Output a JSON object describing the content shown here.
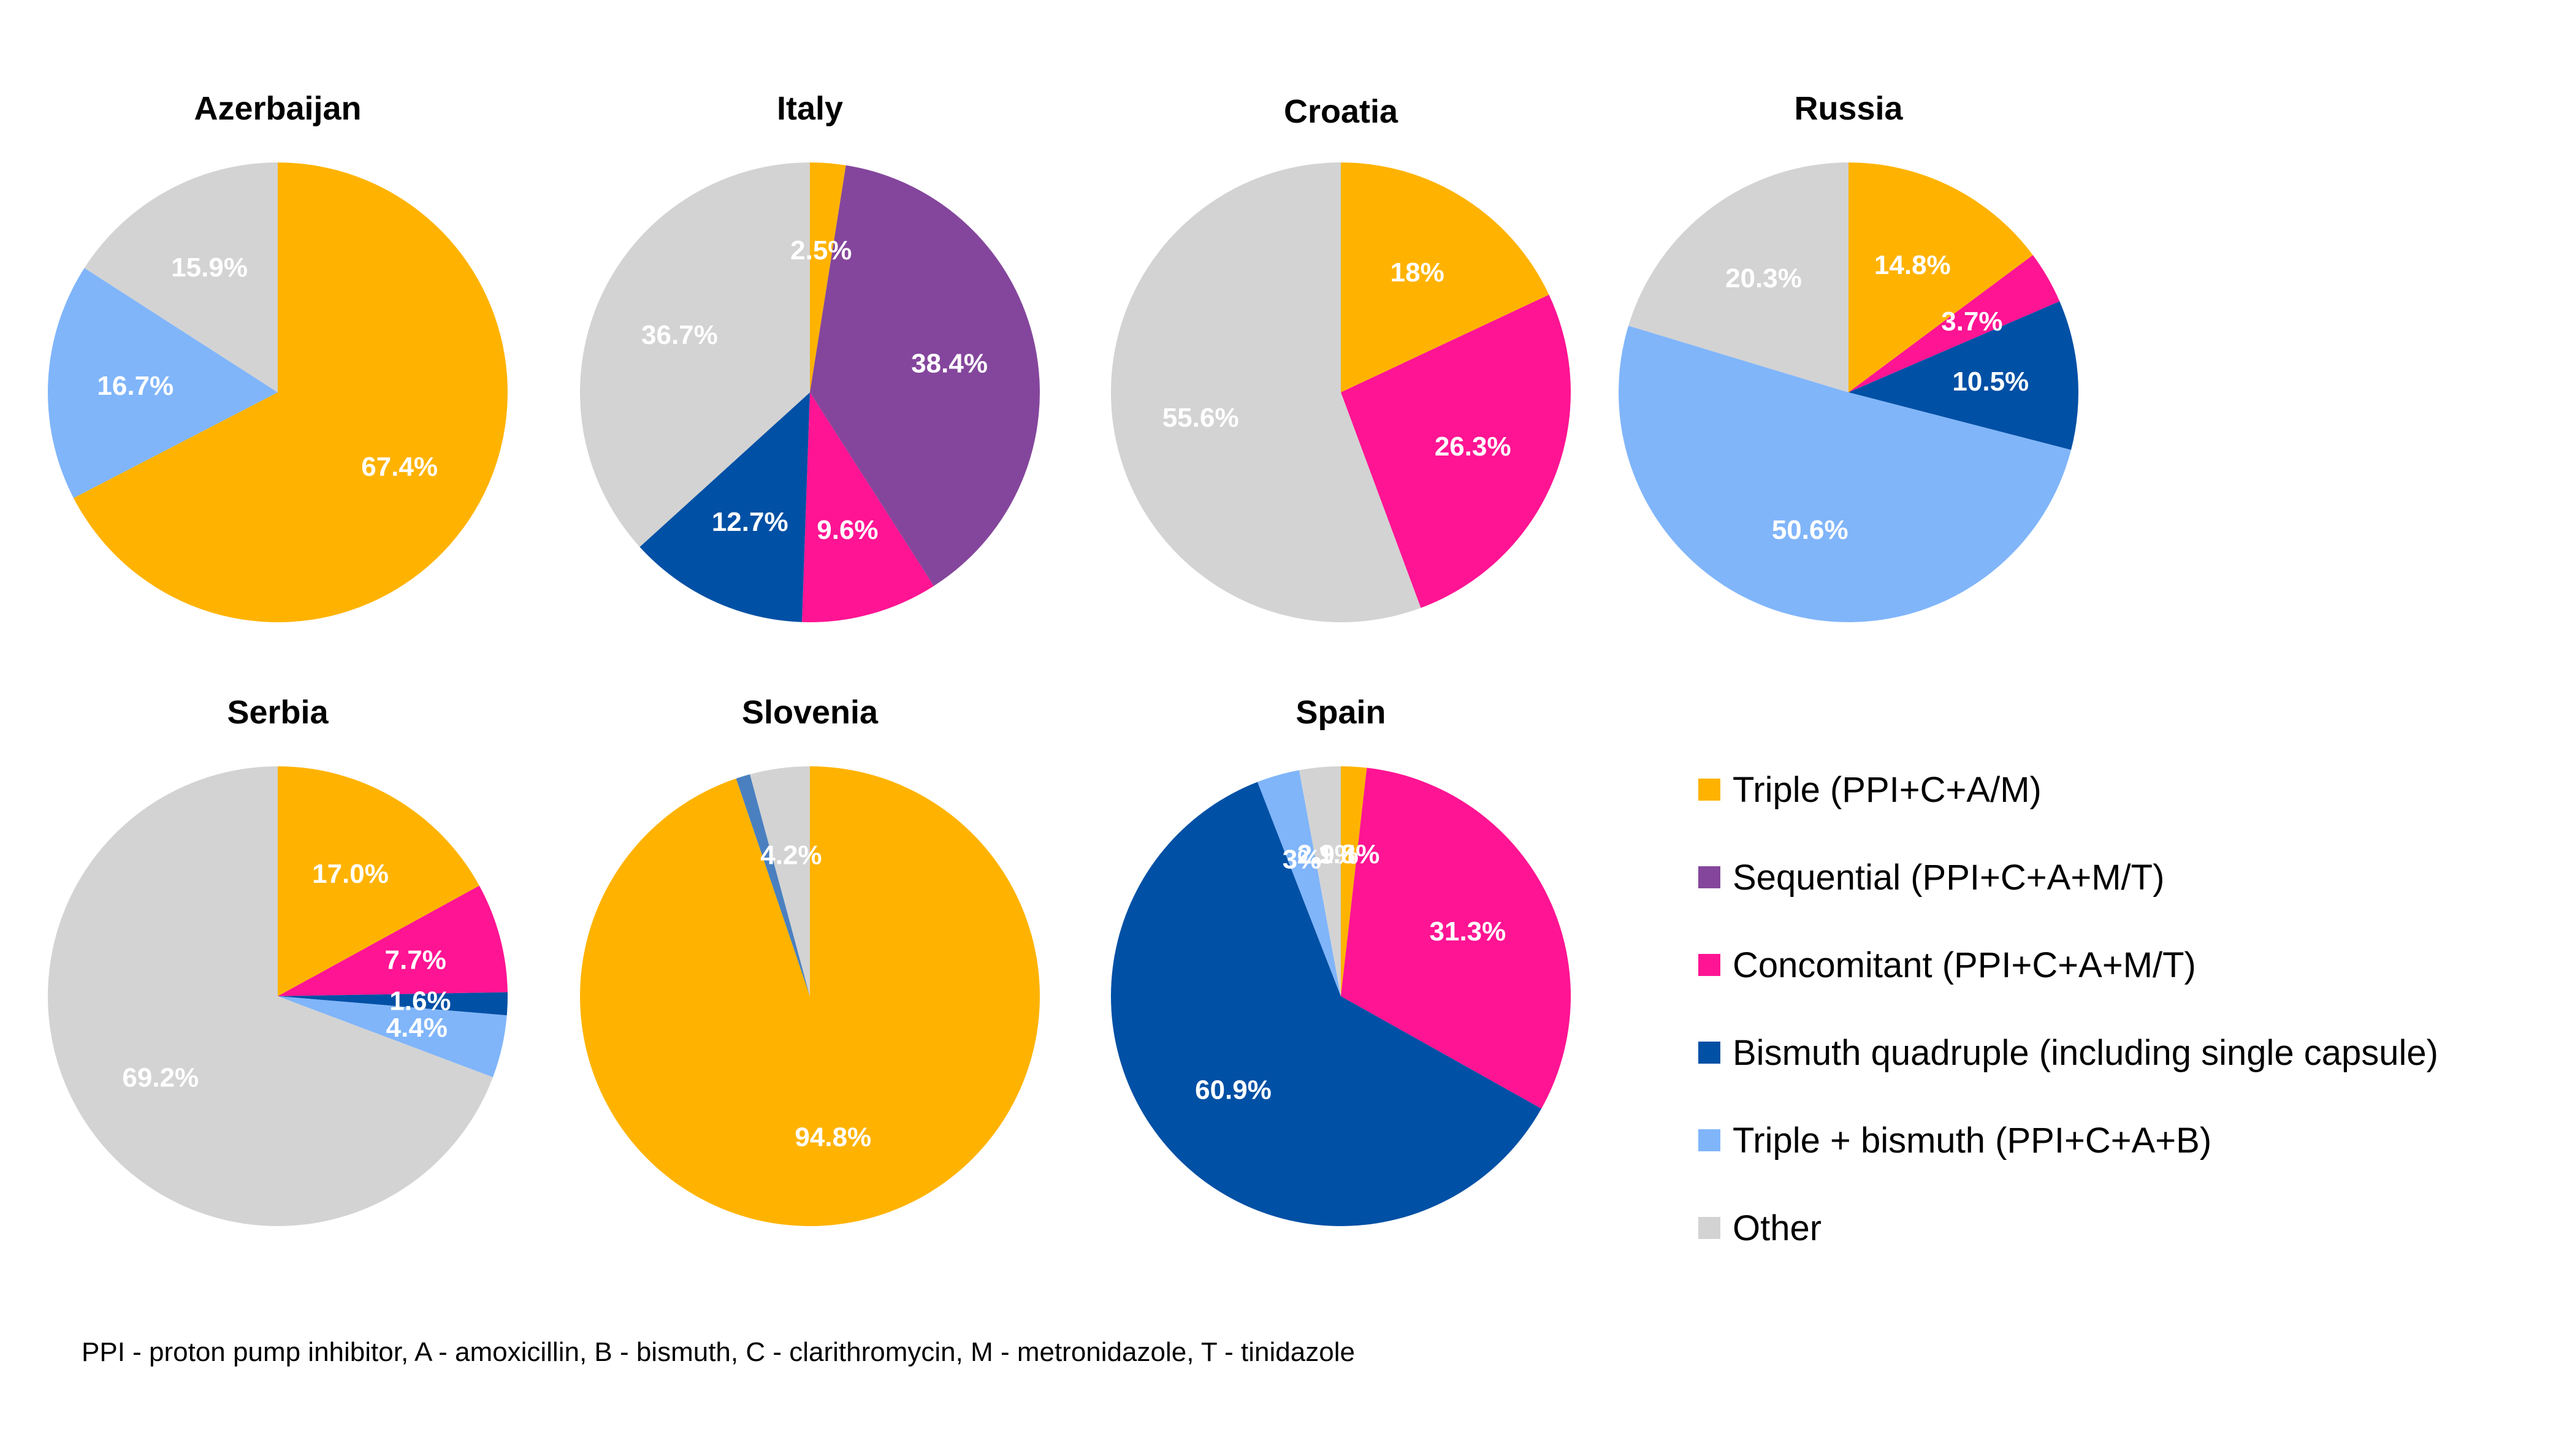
{
  "colors": {
    "triple": "#FFB300",
    "sequential": "#84469C",
    "concomitant": "#FF1493",
    "bismuth_quadruple": "#0050A5",
    "triple_bismuth": "#80B5FA",
    "other": "#D3D3D3",
    "slovenia_sliver": "#4A80C0"
  },
  "legend": {
    "items": [
      {
        "key": "triple",
        "label": "Triple (PPI+C+A/M)"
      },
      {
        "key": "sequential",
        "label": "Sequential (PPI+C+A+M/T)"
      },
      {
        "key": "concomitant",
        "label": "Concomitant (PPI+C+A+M/T)"
      },
      {
        "key": "bismuth_quadruple",
        "label": "Bismuth quadruple (including single capsule)"
      },
      {
        "key": "triple_bismuth",
        "label": "Triple + bismuth (PPI+C+A+B)"
      },
      {
        "key": "other",
        "label": "Other"
      }
    ]
  },
  "footnote": "PPI - proton pump inhibitor, A - amoxicillin, B - bismuth, C - clarithromycin, M - metronidazole, T - tinidazole",
  "chart_data": [
    {
      "type": "pie",
      "title": "Azerbaijan",
      "slices": [
        {
          "key": "triple",
          "value": 67.4,
          "label": "67.4%"
        },
        {
          "key": "triple_bismuth",
          "value": 16.7,
          "label": "16.7%"
        },
        {
          "key": "other",
          "value": 15.9,
          "label": "15.9%"
        }
      ]
    },
    {
      "type": "pie",
      "title": "Italy",
      "slices": [
        {
          "key": "triple",
          "value": 2.5,
          "label": "2.5%"
        },
        {
          "key": "sequential",
          "value": 38.4,
          "label": "38.4%"
        },
        {
          "key": "concomitant",
          "value": 9.6,
          "label": "9.6%"
        },
        {
          "key": "bismuth_quadruple",
          "value": 12.7,
          "label": "12.7%"
        },
        {
          "key": "other",
          "value": 36.7,
          "label": "36.7%"
        }
      ]
    },
    {
      "type": "pie",
      "title": "Croatia",
      "slices": [
        {
          "key": "triple",
          "value": 18,
          "label": "18%"
        },
        {
          "key": "concomitant",
          "value": 26.3,
          "label": "26.3%"
        },
        {
          "key": "other",
          "value": 55.6,
          "label": "55.6%"
        }
      ]
    },
    {
      "type": "pie",
      "title": "Russia",
      "slices": [
        {
          "key": "triple",
          "value": 14.8,
          "label": "14.8%"
        },
        {
          "key": "concomitant",
          "value": 3.7,
          "label": "3.7%"
        },
        {
          "key": "bismuth_quadruple",
          "value": 10.5,
          "label": "10.5%"
        },
        {
          "key": "triple_bismuth",
          "value": 50.6,
          "label": "50.6%"
        },
        {
          "key": "other",
          "value": 20.3,
          "label": "20.3%"
        }
      ]
    },
    {
      "type": "pie",
      "title": "Serbia",
      "slices": [
        {
          "key": "triple",
          "value": 17.0,
          "label": "17.0%"
        },
        {
          "key": "concomitant",
          "value": 7.7,
          "label": "7.7%"
        },
        {
          "key": "bismuth_quadruple",
          "value": 1.6,
          "label": "1.6%"
        },
        {
          "key": "triple_bismuth",
          "value": 4.4,
          "label": "4.4%"
        },
        {
          "key": "other",
          "value": 69.2,
          "label": "69.2%"
        }
      ]
    },
    {
      "type": "pie",
      "title": "Slovenia",
      "slices": [
        {
          "key": "triple",
          "value": 94.8,
          "label": "94.8%"
        },
        {
          "key": "slovenia_sliver",
          "value": 1.0,
          "label": ""
        },
        {
          "key": "other",
          "value": 4.2,
          "label": "4.2%"
        }
      ]
    },
    {
      "type": "pie",
      "title": "Spain",
      "slices": [
        {
          "key": "triple",
          "value": 1.8,
          "label": "1.8%"
        },
        {
          "key": "concomitant",
          "value": 31.3,
          "label": "31.3%"
        },
        {
          "key": "bismuth_quadruple",
          "value": 60.9,
          "label": "60.9%"
        },
        {
          "key": "triple_bismuth",
          "value": 3,
          "label": "3%"
        },
        {
          "key": "other",
          "value": 2.9,
          "label": "2.9%"
        }
      ]
    }
  ]
}
